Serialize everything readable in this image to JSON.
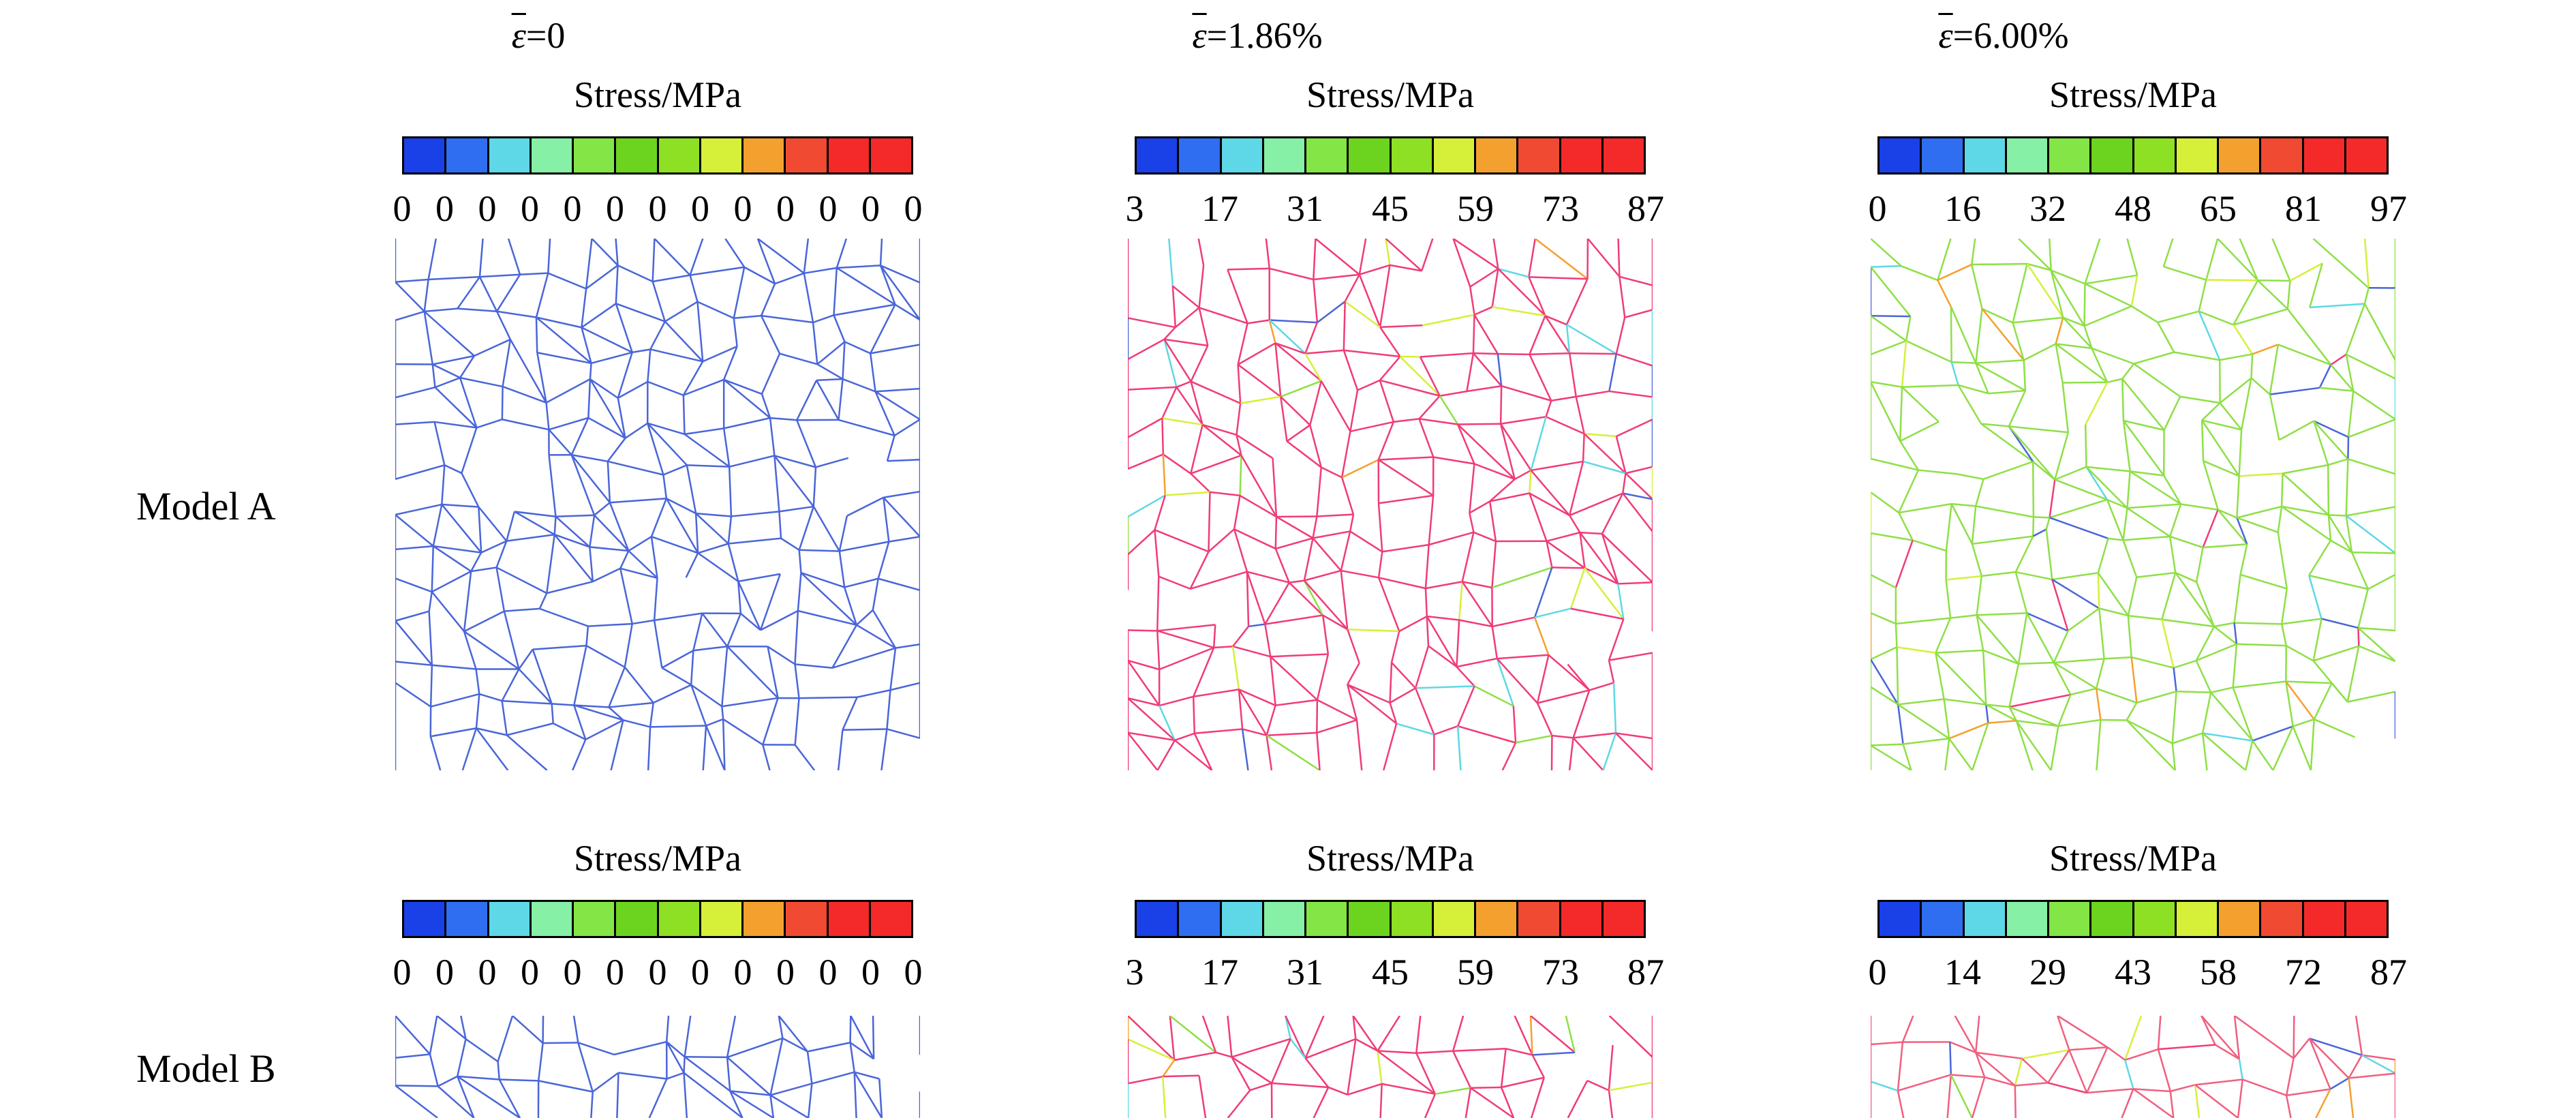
{
  "columns": [
    {
      "strain_label": "=0"
    },
    {
      "strain_label": "=1.86%"
    },
    {
      "strain_label": "=6.00%"
    }
  ],
  "strain_symbol": "ε",
  "rows": [
    {
      "label": "Model A"
    },
    {
      "label": "Model B"
    }
  ],
  "colorbar_title": "Stress/MPa",
  "colorbar_colors": [
    "#1a40e8",
    "#2f6ef0",
    "#5ed8e6",
    "#86f0a6",
    "#84e646",
    "#6cd41e",
    "#8ee024",
    "#d6f03a",
    "#f4a02e",
    "#f04a32",
    "#f42a2a",
    "#f42a2a"
  ],
  "panels": [
    {
      "row": 0,
      "col": 0,
      "ticks": [
        "0",
        "0",
        "0",
        "0",
        "0",
        "0",
        "0",
        "0",
        "0",
        "0",
        "0",
        "0",
        "0"
      ],
      "mesh_color": "#4a66d8"
    },
    {
      "row": 0,
      "col": 1,
      "ticks": [
        "3",
        "17",
        "31",
        "45",
        "59",
        "73",
        "87"
      ],
      "mesh_color": "#f03c78"
    },
    {
      "row": 0,
      "col": 2,
      "ticks": [
        "0",
        "16",
        "32",
        "48",
        "65",
        "81",
        "97"
      ],
      "mesh_color": "#8ee046"
    },
    {
      "row": 1,
      "col": 0,
      "ticks": [
        "0",
        "0",
        "0",
        "0",
        "0",
        "0",
        "0",
        "0",
        "0",
        "0",
        "0",
        "0",
        "0"
      ],
      "mesh_color": "#4a66d8"
    },
    {
      "row": 1,
      "col": 1,
      "ticks": [
        "3",
        "17",
        "31",
        "45",
        "59",
        "73",
        "87"
      ],
      "mesh_color": "#f03c78"
    },
    {
      "row": 1,
      "col": 2,
      "ticks": [
        "0",
        "14",
        "29",
        "43",
        "58",
        "72",
        "87"
      ],
      "mesh_color": "#f06080"
    }
  ]
}
